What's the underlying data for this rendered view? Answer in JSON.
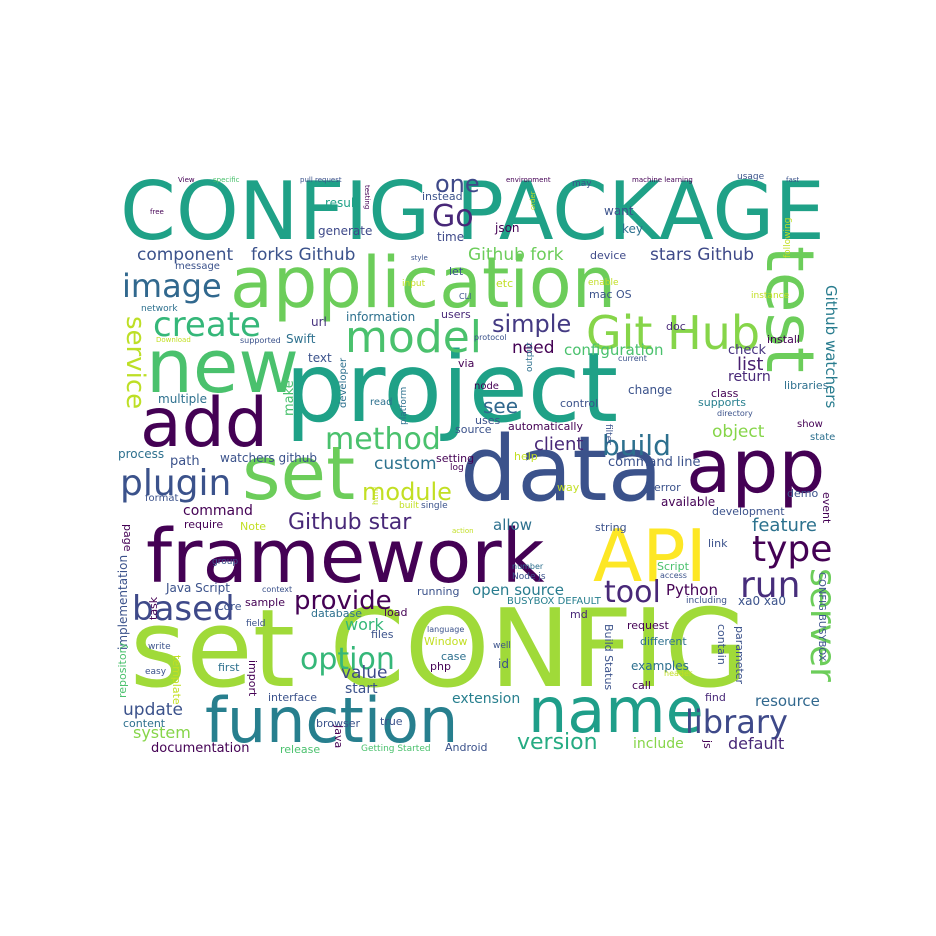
{
  "palette": {
    "darkviolet": "#440154",
    "indigo": "#46327e",
    "slateblue": "#365c8d",
    "steelteal": "#277f8e",
    "teal": "#1fa187",
    "green": "#4ac16d",
    "lime": "#a0da39",
    "yellow": "#fde725"
  },
  "words": [
    {
      "t": "CONFIG PACKAGE",
      "c": "#1fa187"
    },
    {
      "t": "application",
      "c": "#6ccd5a"
    },
    {
      "t": "new",
      "c": "#4ac16d"
    },
    {
      "t": "project",
      "c": "#1fa187"
    },
    {
      "t": "add",
      "c": "#440154"
    },
    {
      "t": "set",
      "c": "#6ccd5a"
    },
    {
      "t": "data",
      "c": "#3b528b"
    },
    {
      "t": "app",
      "c": "#440154"
    },
    {
      "t": "framework",
      "c": "#440154"
    },
    {
      "t": "API",
      "c": "#fde725"
    },
    {
      "t": "set CONFIG",
      "c": "#a0da39"
    },
    {
      "t": "function",
      "c": "#277f8e"
    },
    {
      "t": "name",
      "c": "#1f9e89"
    },
    {
      "t": "test",
      "c": "#6ccd5a"
    },
    {
      "t": "model",
      "c": "#4ac16d"
    },
    {
      "t": "Git Hub",
      "c": "#86d549"
    },
    {
      "t": "create",
      "c": "#35b779"
    },
    {
      "t": "image",
      "c": "#31688e"
    },
    {
      "t": "method",
      "c": "#4ac16d"
    },
    {
      "t": "plugin",
      "c": "#3b528b"
    },
    {
      "t": "module",
      "c": "#c2df23"
    },
    {
      "t": "build",
      "c": "#2d708e"
    },
    {
      "t": "Github star",
      "c": "#482878"
    },
    {
      "t": "type",
      "c": "#440154"
    },
    {
      "t": "run",
      "c": "#472d7b"
    },
    {
      "t": "server",
      "c": "#6ccd5a"
    },
    {
      "t": "based",
      "c": "#3e4989"
    },
    {
      "t": "provide",
      "c": "#440154"
    },
    {
      "t": "tool",
      "c": "#482878"
    },
    {
      "t": "option",
      "c": "#35b779"
    },
    {
      "t": "library",
      "c": "#3e4989"
    },
    {
      "t": "version",
      "c": "#25ab82"
    },
    {
      "t": "Go",
      "c": "#482878"
    },
    {
      "t": "one",
      "c": "#3e4989"
    },
    {
      "t": "simple",
      "c": "#443a83"
    },
    {
      "t": "service",
      "c": "#bddf26"
    },
    {
      "t": "Github watchers",
      "c": "#287c8e"
    },
    {
      "t": "component",
      "c": "#3b528b"
    },
    {
      "t": "forks Github",
      "c": "#3b528b"
    },
    {
      "t": "Github fork",
      "c": "#6ccd5a"
    },
    {
      "t": "stars Github",
      "c": "#3e4989"
    },
    {
      "t": "need",
      "c": "#440154"
    },
    {
      "t": "configuration",
      "c": "#4ac16d"
    },
    {
      "t": "custom",
      "c": "#2c728e"
    },
    {
      "t": "client",
      "c": "#482878"
    },
    {
      "t": "command line",
      "c": "#3b528b"
    },
    {
      "t": "see",
      "c": "#31688e"
    },
    {
      "t": "list",
      "c": "#481f70"
    },
    {
      "t": "check",
      "c": "#46337f"
    },
    {
      "t": "return",
      "c": "#482878"
    },
    {
      "t": "object",
      "c": "#86d549"
    },
    {
      "t": "feature",
      "c": "#2c728e"
    },
    {
      "t": "work",
      "c": "#35b779"
    },
    {
      "t": "value",
      "c": "#3e4989"
    },
    {
      "t": "start",
      "c": "#3b528b"
    },
    {
      "t": "update",
      "c": "#3b528b"
    },
    {
      "t": "system",
      "c": "#86d549"
    },
    {
      "t": "documentation",
      "c": "#440154"
    },
    {
      "t": "default",
      "c": "#482878"
    },
    {
      "t": "resource",
      "c": "#31688e"
    },
    {
      "t": "include",
      "c": "#86d549"
    },
    {
      "t": "extension",
      "c": "#277f8e"
    },
    {
      "t": "open source",
      "c": "#287c8e"
    },
    {
      "t": "allow",
      "c": "#2d708e"
    },
    {
      "t": "Python",
      "c": "#440154"
    },
    {
      "t": "command",
      "c": "#440154"
    },
    {
      "t": "watchers github",
      "c": "#3b528b"
    },
    {
      "t": "path",
      "c": "#3b528b"
    },
    {
      "t": "process",
      "c": "#2d708e"
    },
    {
      "t": "make",
      "c": "#4ac16d"
    },
    {
      "t": "multiple",
      "c": "#2d708e"
    },
    {
      "t": "text",
      "c": "#3b528b"
    },
    {
      "t": "url",
      "c": "#46327e"
    },
    {
      "t": "Swift",
      "c": "#2d708e"
    },
    {
      "t": "information",
      "c": "#2d708e"
    },
    {
      "t": "users",
      "c": "#482878"
    },
    {
      "t": "result",
      "c": "#1fa187"
    },
    {
      "t": "generate",
      "c": "#3e4989"
    },
    {
      "t": "json",
      "c": "#440154"
    },
    {
      "t": "time",
      "c": "#3e4989"
    },
    {
      "t": "want",
      "c": "#3b528b"
    },
    {
      "t": "key",
      "c": "#2d708e"
    },
    {
      "t": "instead",
      "c": "#3b528b"
    },
    {
      "t": "let",
      "c": "#3b528b"
    },
    {
      "t": "etc",
      "c": "#c2df23"
    },
    {
      "t": "device",
      "c": "#3e4989"
    },
    {
      "t": "mac OS",
      "c": "#3b528b"
    },
    {
      "t": "doc",
      "c": "#482878"
    },
    {
      "t": "install",
      "c": "#440154"
    },
    {
      "t": "libraries",
      "c": "#2d708e"
    },
    {
      "t": "supports",
      "c": "#277f8e"
    },
    {
      "t": "class",
      "c": "#440154"
    },
    {
      "t": "change",
      "c": "#3b528b"
    },
    {
      "t": "control",
      "c": "#3b528b"
    },
    {
      "t": "automatically",
      "c": "#440154"
    },
    {
      "t": "uses",
      "c": "#3b528b"
    },
    {
      "t": "source",
      "c": "#3b528b"
    },
    {
      "t": "setting",
      "c": "#440154"
    },
    {
      "t": "help",
      "c": "#c2df23"
    },
    {
      "t": "way",
      "c": "#c2df23"
    },
    {
      "t": "error",
      "c": "#3b528b"
    },
    {
      "t": "available",
      "c": "#440154"
    },
    {
      "t": "development",
      "c": "#3b528b"
    },
    {
      "t": "demo",
      "c": "#3b528b"
    },
    {
      "t": "event",
      "c": "#440154"
    },
    {
      "t": "string",
      "c": "#3b528b"
    },
    {
      "t": "link",
      "c": "#3b528b"
    },
    {
      "t": "Script",
      "c": "#4ac16d"
    },
    {
      "t": "request",
      "c": "#440154"
    },
    {
      "t": "different",
      "c": "#2d708e"
    },
    {
      "t": "examples",
      "c": "#2d708e"
    },
    {
      "t": "call",
      "c": "#440154"
    },
    {
      "t": "find",
      "c": "#482878"
    },
    {
      "t": "contain",
      "c": "#3b528b"
    },
    {
      "t": "parameter",
      "c": "#3b528b"
    },
    {
      "t": "Java Script",
      "c": "#3b528b"
    },
    {
      "t": "Core",
      "c": "#3b528b"
    },
    {
      "t": "sample",
      "c": "#440154"
    },
    {
      "t": "implementation",
      "c": "#3b528b"
    },
    {
      "t": "repository",
      "c": "#4ac16d"
    },
    {
      "t": "template",
      "c": "#c2df23"
    },
    {
      "t": "first",
      "c": "#2d708e"
    },
    {
      "t": "interface",
      "c": "#3b528b"
    },
    {
      "t": "import",
      "c": "#440154"
    },
    {
      "t": "browser",
      "c": "#3b528b"
    },
    {
      "t": "Java",
      "c": "#440154"
    },
    {
      "t": "true",
      "c": "#3b528b"
    },
    {
      "t": "content",
      "c": "#2d708e"
    },
    {
      "t": "Android",
      "c": "#3b528b"
    },
    {
      "t": "release",
      "c": "#4ac16d"
    },
    {
      "t": "Getting Started",
      "c": "#4ac16d"
    },
    {
      "t": "Build Status",
      "c": "#3b528b"
    },
    {
      "t": "case",
      "c": "#2d708e"
    },
    {
      "t": "php",
      "c": "#440154"
    },
    {
      "t": "id",
      "c": "#3b528b"
    },
    {
      "t": "Window",
      "c": "#c2df23"
    },
    {
      "t": "files",
      "c": "#3b528b"
    },
    {
      "t": "database",
      "c": "#2d708e"
    },
    {
      "t": "load",
      "c": "#440154"
    },
    {
      "t": "running",
      "c": "#3b528b"
    },
    {
      "t": "md",
      "c": "#482878"
    },
    {
      "t": "xa0 xa0",
      "c": "#3b528b"
    },
    {
      "t": "BUSYBOX DEFAULT",
      "c": "#277f8e"
    },
    {
      "t": "CONFIG BUSYBOX",
      "c": "#3b528b"
    },
    {
      "t": "Note",
      "c": "#c2df23"
    },
    {
      "t": "require",
      "c": "#440154"
    },
    {
      "t": "page",
      "c": "#440154"
    },
    {
      "t": "format",
      "c": "#3b528b"
    },
    {
      "t": "task",
      "c": "#440154"
    },
    {
      "t": "group",
      "c": "#3b528b"
    },
    {
      "t": "Node js",
      "c": "#3b528b"
    },
    {
      "t": "number",
      "c": "#2d708e"
    },
    {
      "t": "access",
      "c": "#3b528b"
    },
    {
      "t": "including",
      "c": "#3b528b"
    },
    {
      "t": "context",
      "c": "#3b528b"
    },
    {
      "t": "field",
      "c": "#3b528b"
    },
    {
      "t": "write",
      "c": "#3b528b"
    },
    {
      "t": "easy",
      "c": "#3b528b"
    },
    {
      "t": "language",
      "c": "#3b528b"
    },
    {
      "t": "well",
      "c": "#3b528b"
    },
    {
      "t": "header",
      "c": "#c2df23"
    },
    {
      "t": "js",
      "c": "#440154"
    },
    {
      "t": "state",
      "c": "#2d708e"
    },
    {
      "t": "show",
      "c": "#440154"
    },
    {
      "t": "directory",
      "c": "#3b528b"
    },
    {
      "t": "current",
      "c": "#3b528b"
    },
    {
      "t": "filter",
      "c": "#3b528b"
    },
    {
      "t": "log",
      "c": "#440154"
    },
    {
      "t": "node",
      "c": "#440154"
    },
    {
      "t": "output",
      "c": "#2d708e"
    },
    {
      "t": "platform",
      "c": "#2d708e"
    },
    {
      "t": "read",
      "c": "#2d708e"
    },
    {
      "t": "developer",
      "c": "#2d708e"
    },
    {
      "t": "via",
      "c": "#440154"
    },
    {
      "t": "protocol",
      "c": "#3b528b"
    },
    {
      "t": "CLI",
      "c": "#3b528b"
    },
    {
      "t": "input",
      "c": "#c2df23"
    },
    {
      "t": "enable",
      "c": "#c2df23"
    },
    {
      "t": "following",
      "c": "#c2df23"
    },
    {
      "t": "instance",
      "c": "#c2df23"
    },
    {
      "t": "network",
      "c": "#2d708e"
    },
    {
      "t": "message",
      "c": "#3b528b"
    },
    {
      "t": "Download",
      "c": "#c2df23"
    },
    {
      "t": "supported",
      "c": "#3b528b"
    },
    {
      "t": "html",
      "c": "#c2df23"
    },
    {
      "t": "single",
      "c": "#3b528b"
    },
    {
      "t": "built",
      "c": "#c2df23"
    },
    {
      "t": "action",
      "c": "#c2df23"
    },
    {
      "t": "View",
      "c": "#440154"
    },
    {
      "t": "specific",
      "c": "#4ac16d"
    },
    {
      "t": "pull request",
      "c": "#3b528b"
    },
    {
      "t": "testing",
      "c": "#440154"
    },
    {
      "t": "environment",
      "c": "#440154"
    },
    {
      "t": "machine learning",
      "c": "#440154"
    },
    {
      "t": "usage",
      "c": "#3b528b"
    },
    {
      "t": "fast",
      "c": "#3b528b"
    },
    {
      "t": "free",
      "c": "#440154"
    },
    {
      "t": "order",
      "c": "#c2df23"
    },
    {
      "t": "style",
      "c": "#3b528b"
    },
    {
      "t": "may",
      "c": "#3b528b"
    }
  ]
}
